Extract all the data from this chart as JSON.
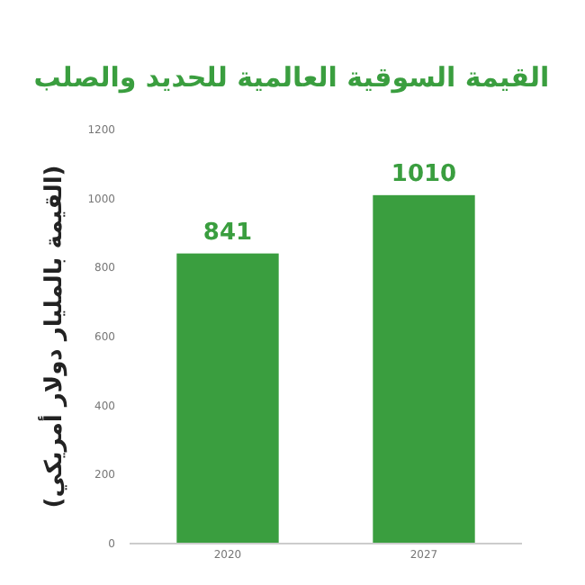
{
  "chart_data": {
    "type": "bar",
    "title": "القيمة السوقية العالمية للحديد والصلب",
    "ylabel": "(القيمة بالمليار دولار أمريكي)",
    "categories": [
      "2020",
      "2027"
    ],
    "values": [
      841,
      1010
    ],
    "color": "#3a9e3f",
    "ylim": [
      0,
      1200
    ],
    "yticks": [
      0,
      200,
      400,
      600,
      800,
      1000,
      1200
    ],
    "data_labels": true
  }
}
